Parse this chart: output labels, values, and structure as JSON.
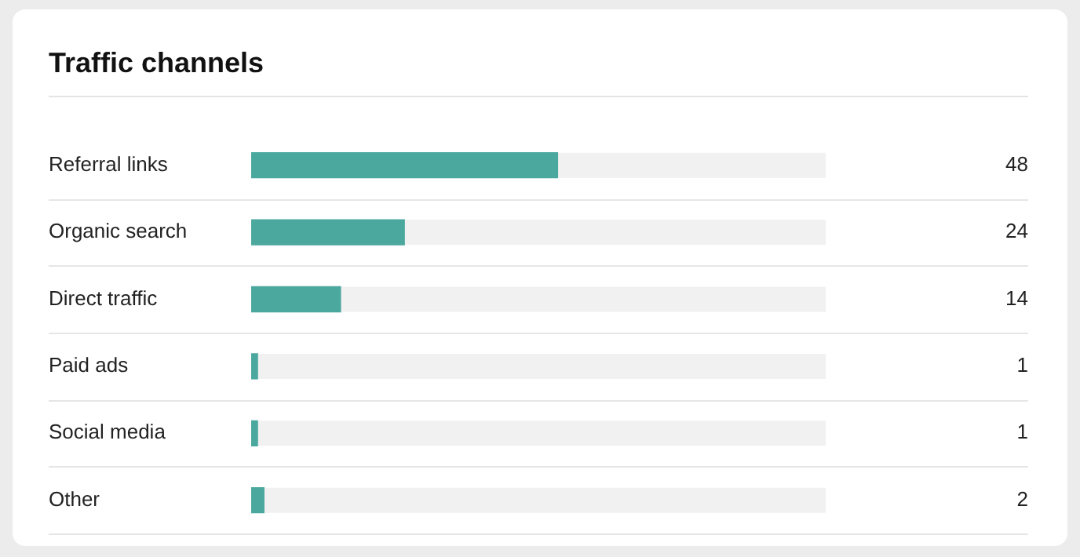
{
  "chart_data": {
    "type": "bar",
    "title": "Traffic channels",
    "orientation": "horizontal",
    "categories": [
      "Referral links",
      "Organic search",
      "Direct traffic",
      "Paid ads",
      "Social media",
      "Other"
    ],
    "values": [
      48,
      24,
      14,
      1,
      1,
      2
    ],
    "color": "#4ba89f",
    "xlim": [
      0,
      90
    ],
    "data_labels": true,
    "grid": "y",
    "tick_labels": "y",
    "legend": false
  }
}
